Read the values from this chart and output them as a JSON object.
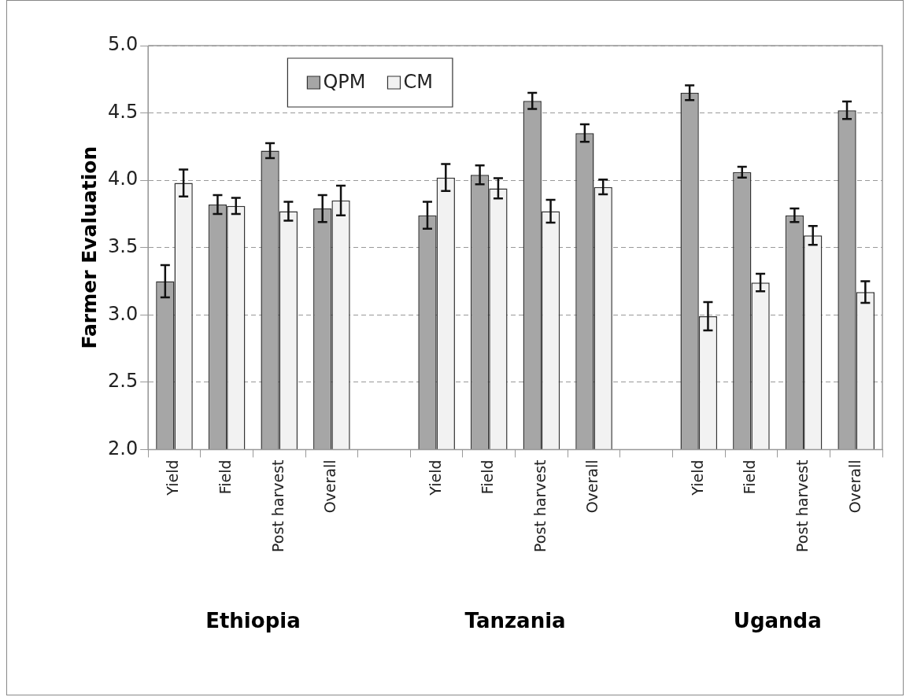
{
  "chart_data": {
    "type": "bar",
    "ylabel": "Farmer Evaluation",
    "categories": [
      "Yield",
      "Field",
      "Post harvest",
      "Overall",
      null,
      "Yield",
      "Field",
      "Post harvest",
      "Overall",
      null,
      "Yield",
      "Field",
      "Post harvest",
      "Overall"
    ],
    "series": [
      {
        "name": "QPM",
        "color": "#a6a6a6",
        "values": [
          3.25,
          3.82,
          4.22,
          3.79,
          null,
          3.74,
          4.04,
          4.59,
          4.35,
          null,
          4.65,
          4.06,
          3.74,
          4.52
        ],
        "errors": [
          0.12,
          0.07,
          0.055,
          0.1,
          null,
          0.1,
          0.07,
          0.06,
          0.065,
          null,
          0.055,
          0.04,
          0.05,
          0.065
        ]
      },
      {
        "name": "CM",
        "color": "#f2f2f2",
        "values": [
          3.98,
          3.81,
          3.77,
          3.85,
          null,
          4.02,
          3.94,
          3.77,
          3.95,
          null,
          2.99,
          3.24,
          3.59,
          3.17
        ],
        "errors": [
          0.1,
          0.06,
          0.07,
          0.11,
          null,
          0.1,
          0.075,
          0.085,
          0.055,
          null,
          0.105,
          0.065,
          0.07,
          0.08
        ]
      }
    ],
    "ylim": [
      2,
      5
    ],
    "yticks": [
      {
        "value": 2,
        "label": "2.0"
      },
      {
        "value": 2.5,
        "label": "2.5"
      },
      {
        "value": 3,
        "label": "3.0"
      },
      {
        "value": 3.5,
        "label": "3.5"
      },
      {
        "value": 4,
        "label": "4.0"
      },
      {
        "value": 4.5,
        "label": "4.5"
      },
      {
        "value": 5,
        "label": "5.0"
      }
    ],
    "grid": "y",
    "legend": "top left",
    "annotations": [
      "Ethiopia",
      "Tanzania",
      "Uganda"
    ]
  }
}
